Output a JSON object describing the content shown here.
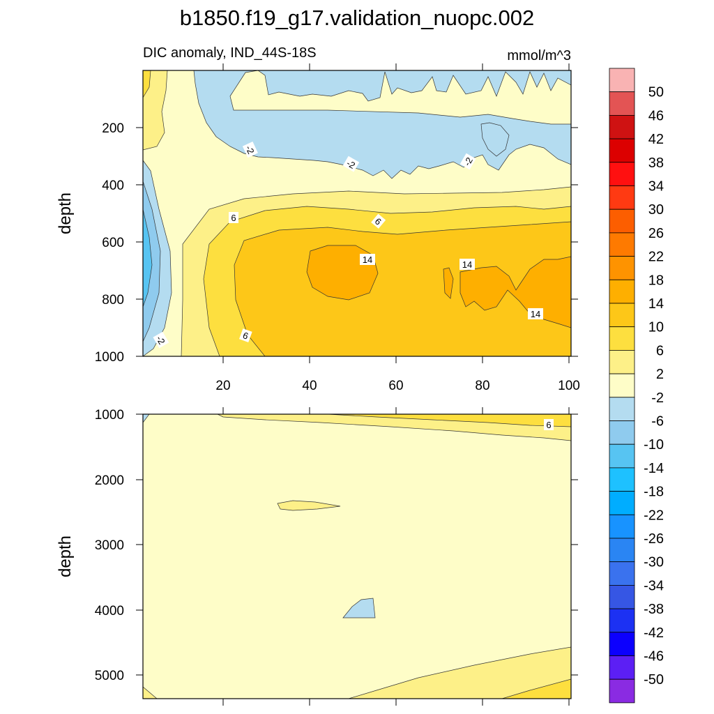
{
  "title": "b1850.f19_g17.validation_nuopc.002",
  "chart_data": [
    {
      "type": "contour",
      "panel": "upper",
      "left_subtitle": "DIC anomaly, IND_44S-18S",
      "right_subtitle": "mmol/m^3",
      "ylabel": "depth",
      "xlabel": "",
      "xlim": [
        1,
        101
      ],
      "ylim": [
        1000,
        0
      ],
      "x_ticks": [
        "20",
        "40",
        "60",
        "80",
        "100"
      ],
      "y_ticks": [
        "200",
        "400",
        "600",
        "800",
        "1000"
      ],
      "contour_labels": [
        "-2",
        "-2",
        "-2",
        "6",
        "6",
        "14",
        "14",
        "14",
        "6",
        "-2"
      ],
      "description_fields": {
        "regions": [
          {
            "range": "-2 to -6",
            "where": "0-250 m, x 13-100"
          },
          {
            "range": "2 to 6",
            "where": "0-200 m, x 1-6"
          },
          {
            "range": "-2 to -14",
            "where": "300-1000 m, x 1-8"
          },
          {
            "range": "6 to 14",
            "where": "430-1000 m, x 20-100"
          },
          {
            "range": "14 to 18",
            "where": "600-800 m, x 40-55 and x 70-100"
          }
        ]
      }
    },
    {
      "type": "contour",
      "panel": "lower",
      "ylabel": "depth",
      "xlim": [
        1,
        101
      ],
      "ylim": [
        5350,
        1000
      ],
      "y_ticks": [
        "1000",
        "2000",
        "3000",
        "4000",
        "5000"
      ],
      "contour_labels": [
        "6"
      ]
    }
  ],
  "colorbar": {
    "labels": [
      "50",
      "46",
      "42",
      "38",
      "34",
      "30",
      "26",
      "22",
      "18",
      "14",
      "10",
      "6",
      "2",
      "-2",
      "-6",
      "-10",
      "-14",
      "-18",
      "-22",
      "-26",
      "-30",
      "-34",
      "-38",
      "-42",
      "-46",
      "-50"
    ],
    "colors": [
      "#f9b3b3",
      "#e35454",
      "#cf1212",
      "#dc0000",
      "#ff1010",
      "#ff3a12",
      "#fc5e00",
      "#fe7a00",
      "#fe9300",
      "#feaf00",
      "#fdc718",
      "#fddf3f",
      "#fdf088",
      "#fefdc8",
      "#b4dcf0",
      "#8fcbee",
      "#57c4f2",
      "#1ec1ff",
      "#00adff",
      "#1893ff",
      "#2a85f3",
      "#3a72ee",
      "#3656e4",
      "#1c31f3",
      "#0c00fe",
      "#5c1ff4",
      "#8a2be2"
    ]
  }
}
